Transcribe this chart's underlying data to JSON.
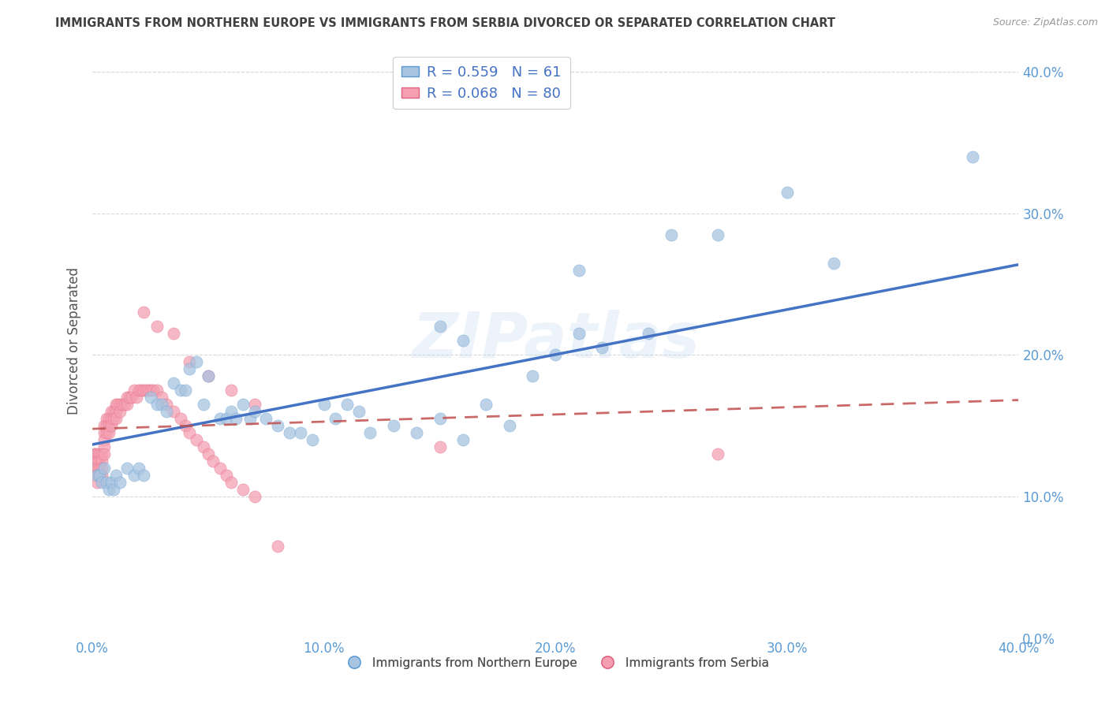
{
  "title": "IMMIGRANTS FROM NORTHERN EUROPE VS IMMIGRANTS FROM SERBIA DIVORCED OR SEPARATED CORRELATION CHART",
  "source_text": "Source: ZipAtlas.com",
  "ylabel": "Divorced or Separated",
  "xlim": [
    0.0,
    0.4
  ],
  "ylim": [
    0.0,
    0.42
  ],
  "yticks": [
    0.0,
    0.1,
    0.2,
    0.3,
    0.4
  ],
  "xticks": [
    0.0,
    0.1,
    0.2,
    0.3,
    0.4
  ],
  "blue_R": 0.559,
  "blue_N": 61,
  "pink_R": 0.068,
  "pink_N": 80,
  "blue_color": "#a8c4e0",
  "blue_edge_color": "#5b9bd5",
  "blue_line_color": "#4472c4",
  "pink_color": "#f4a0b0",
  "pink_edge_color": "#e06080",
  "pink_line_color": "#c0504d",
  "watermark": "ZIPatlas",
  "blue_scatter_x": [
    0.002,
    0.003,
    0.004,
    0.005,
    0.006,
    0.007,
    0.008,
    0.009,
    0.01,
    0.012,
    0.015,
    0.018,
    0.02,
    0.022,
    0.025,
    0.028,
    0.03,
    0.032,
    0.035,
    0.038,
    0.04,
    0.042,
    0.045,
    0.048,
    0.05,
    0.055,
    0.058,
    0.06,
    0.062,
    0.065,
    0.068,
    0.07,
    0.075,
    0.08,
    0.085,
    0.09,
    0.095,
    0.1,
    0.105,
    0.11,
    0.115,
    0.12,
    0.13,
    0.14,
    0.15,
    0.16,
    0.17,
    0.18,
    0.19,
    0.2,
    0.21,
    0.22,
    0.24,
    0.25,
    0.27,
    0.15,
    0.16,
    0.21,
    0.3,
    0.32,
    0.38
  ],
  "blue_scatter_y": [
    0.115,
    0.115,
    0.11,
    0.12,
    0.11,
    0.105,
    0.11,
    0.105,
    0.115,
    0.11,
    0.12,
    0.115,
    0.12,
    0.115,
    0.17,
    0.165,
    0.165,
    0.16,
    0.18,
    0.175,
    0.175,
    0.19,
    0.195,
    0.165,
    0.185,
    0.155,
    0.155,
    0.16,
    0.155,
    0.165,
    0.155,
    0.16,
    0.155,
    0.15,
    0.145,
    0.145,
    0.14,
    0.165,
    0.155,
    0.165,
    0.16,
    0.145,
    0.15,
    0.145,
    0.155,
    0.14,
    0.165,
    0.15,
    0.185,
    0.2,
    0.215,
    0.205,
    0.215,
    0.285,
    0.285,
    0.22,
    0.21,
    0.26,
    0.315,
    0.265,
    0.34
  ],
  "pink_scatter_x": [
    0.001,
    0.001,
    0.001,
    0.001,
    0.002,
    0.002,
    0.002,
    0.002,
    0.002,
    0.003,
    0.003,
    0.003,
    0.003,
    0.004,
    0.004,
    0.004,
    0.004,
    0.005,
    0.005,
    0.005,
    0.005,
    0.005,
    0.006,
    0.006,
    0.006,
    0.007,
    0.007,
    0.007,
    0.008,
    0.008,
    0.008,
    0.009,
    0.009,
    0.01,
    0.01,
    0.01,
    0.011,
    0.012,
    0.012,
    0.013,
    0.014,
    0.015,
    0.015,
    0.016,
    0.017,
    0.018,
    0.019,
    0.02,
    0.021,
    0.022,
    0.023,
    0.024,
    0.025,
    0.026,
    0.028,
    0.03,
    0.032,
    0.035,
    0.038,
    0.04,
    0.042,
    0.045,
    0.048,
    0.05,
    0.052,
    0.055,
    0.058,
    0.06,
    0.065,
    0.07,
    0.022,
    0.028,
    0.035,
    0.042,
    0.05,
    0.06,
    0.07,
    0.08,
    0.15,
    0.27
  ],
  "pink_scatter_y": [
    0.13,
    0.13,
    0.125,
    0.12,
    0.13,
    0.125,
    0.12,
    0.115,
    0.11,
    0.13,
    0.125,
    0.12,
    0.115,
    0.13,
    0.125,
    0.12,
    0.115,
    0.15,
    0.145,
    0.14,
    0.135,
    0.13,
    0.155,
    0.15,
    0.145,
    0.155,
    0.15,
    0.145,
    0.16,
    0.155,
    0.15,
    0.16,
    0.155,
    0.165,
    0.16,
    0.155,
    0.165,
    0.165,
    0.16,
    0.165,
    0.165,
    0.17,
    0.165,
    0.17,
    0.17,
    0.175,
    0.17,
    0.175,
    0.175,
    0.175,
    0.175,
    0.175,
    0.175,
    0.175,
    0.175,
    0.17,
    0.165,
    0.16,
    0.155,
    0.15,
    0.145,
    0.14,
    0.135,
    0.13,
    0.125,
    0.12,
    0.115,
    0.11,
    0.105,
    0.1,
    0.23,
    0.22,
    0.215,
    0.195,
    0.185,
    0.175,
    0.165,
    0.065,
    0.135,
    0.13
  ],
  "background_color": "#ffffff",
  "grid_color": "#c8c8c8",
  "tick_label_color": "#5b9bd5",
  "title_color": "#404040"
}
